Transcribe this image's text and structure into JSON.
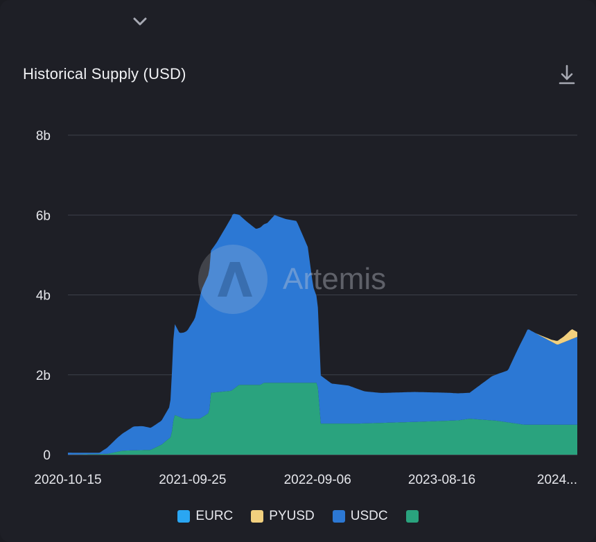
{
  "header": {
    "title": "Historical Supply (USD)"
  },
  "icons": {
    "expand": "chevron-down-icon",
    "download": "download-icon"
  },
  "watermark": "Artemis",
  "chart_data": {
    "type": "area",
    "stacked": true,
    "title": "Historical Supply (USD)",
    "ylim": [
      0,
      8
    ],
    "y_ticks": [
      {
        "value": 8,
        "label": "8b"
      },
      {
        "value": 6,
        "label": "6b"
      },
      {
        "value": 4,
        "label": "4b"
      },
      {
        "value": 2,
        "label": "2b"
      },
      {
        "value": 0,
        "label": "0"
      }
    ],
    "x_ticks": [
      {
        "x": "2020-10-15",
        "label": "2020-10-15"
      },
      {
        "x": "2021-09-25",
        "label": "2021-09-25"
      },
      {
        "x": "2022-09-06",
        "label": "2022-09-06"
      },
      {
        "x": "2023-08-16",
        "label": "2023-08-16"
      },
      {
        "x": "2024-07-26",
        "label": "2024..."
      }
    ],
    "grid": true,
    "legend_position": "bottom",
    "series": [
      {
        "name": "EURC",
        "color": "#2aa6f2",
        "points": [
          [
            "2020-10-15",
            0
          ],
          [
            "2024-08-25",
            0
          ]
        ]
      },
      {
        "name": "PYUSD",
        "color": "#f2d07e",
        "points": [
          [
            "2020-10-15",
            0
          ],
          [
            "2024-05-01",
            0
          ],
          [
            "2024-06-15",
            0.05
          ],
          [
            "2024-07-20",
            0.15
          ],
          [
            "2024-08-10",
            0.25
          ],
          [
            "2024-08-25",
            0.12
          ]
        ]
      },
      {
        "name": "USDC",
        "color": "#2c78d4",
        "points": [
          [
            "2020-10-15",
            0.05
          ],
          [
            "2021-01-10",
            0.03
          ],
          [
            "2021-01-31",
            0.15
          ],
          [
            "2021-03-01",
            0.35
          ],
          [
            "2021-04-15",
            0.6
          ],
          [
            "2021-05-10",
            0.6
          ],
          [
            "2021-06-01",
            0.55
          ],
          [
            "2021-07-01",
            0.6
          ],
          [
            "2021-07-25",
            0.8
          ],
          [
            "2021-08-05",
            2.3
          ],
          [
            "2021-08-20",
            2.1
          ],
          [
            "2021-09-10",
            2.2
          ],
          [
            "2021-10-01",
            2.5
          ],
          [
            "2021-10-20",
            3.2
          ],
          [
            "2021-11-10",
            3.5
          ],
          [
            "2021-12-01",
            3.75
          ],
          [
            "2022-01-15",
            4.4
          ],
          [
            "2022-02-20",
            4.1
          ],
          [
            "2022-03-20",
            3.9
          ],
          [
            "2022-04-20",
            4.0
          ],
          [
            "2022-05-10",
            4.2
          ],
          [
            "2022-06-10",
            4.1
          ],
          [
            "2022-07-10",
            4.05
          ],
          [
            "2022-08-10",
            3.4
          ],
          [
            "2022-08-25",
            2.4
          ],
          [
            "2022-09-06",
            2.1
          ],
          [
            "2022-09-15",
            1.2
          ],
          [
            "2022-10-15",
            1.0
          ],
          [
            "2022-12-01",
            0.95
          ],
          [
            "2023-01-15",
            0.8
          ],
          [
            "2023-03-01",
            0.75
          ],
          [
            "2023-06-01",
            0.75
          ],
          [
            "2023-09-01",
            0.7
          ],
          [
            "2023-11-01",
            0.65
          ],
          [
            "2024-01-01",
            1.1
          ],
          [
            "2024-02-15",
            1.3
          ],
          [
            "2024-03-15",
            1.9
          ],
          [
            "2024-04-10",
            2.4
          ],
          [
            "2024-05-20",
            2.2
          ],
          [
            "2024-07-01",
            2.0
          ],
          [
            "2024-08-25",
            2.2
          ]
        ]
      },
      {
        "name": "",
        "color": "#2aa37e",
        "points": [
          [
            "2020-10-15",
            0
          ],
          [
            "2021-02-01",
            0.02
          ],
          [
            "2021-03-15",
            0.1
          ],
          [
            "2021-06-01",
            0.12
          ],
          [
            "2021-07-01",
            0.25
          ],
          [
            "2021-07-28",
            0.45
          ],
          [
            "2021-08-05",
            1.0
          ],
          [
            "2021-09-01",
            0.9
          ],
          [
            "2021-10-15",
            0.9
          ],
          [
            "2021-11-10",
            1.05
          ],
          [
            "2021-11-15",
            1.55
          ],
          [
            "2022-01-10",
            1.6
          ],
          [
            "2022-02-01",
            1.75
          ],
          [
            "2022-04-01",
            1.75
          ],
          [
            "2022-04-10",
            1.8
          ],
          [
            "2022-09-06",
            1.8
          ],
          [
            "2022-09-15",
            0.78
          ],
          [
            "2023-01-01",
            0.78
          ],
          [
            "2023-06-01",
            0.82
          ],
          [
            "2023-10-01",
            0.86
          ],
          [
            "2023-11-01",
            0.9
          ],
          [
            "2024-01-15",
            0.85
          ],
          [
            "2024-04-01",
            0.75
          ],
          [
            "2024-08-25",
            0.75
          ]
        ]
      }
    ]
  },
  "legend": [
    {
      "label": "EURC",
      "color": "#2aa6f2"
    },
    {
      "label": "PYUSD",
      "color": "#f2d07e"
    },
    {
      "label": "USDC",
      "color": "#2c78d4"
    },
    {
      "label": "",
      "color": "#2aa37e"
    }
  ]
}
